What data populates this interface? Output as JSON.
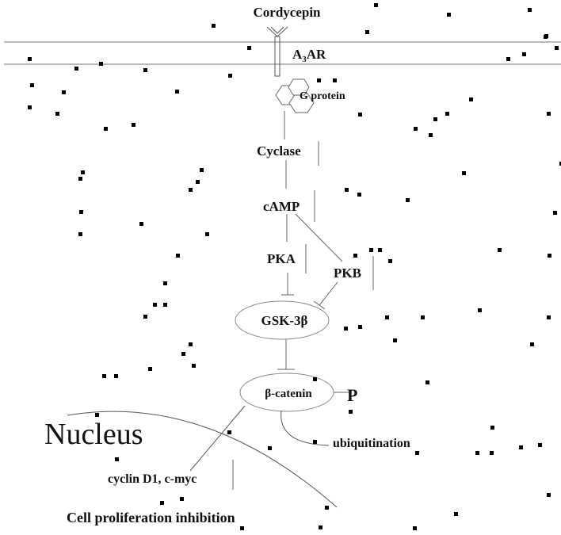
{
  "diagram": {
    "labels": {
      "cordycepin": "Cordycepin",
      "receptor_main": "A",
      "receptor_sub": "3",
      "receptor_tail": "AR",
      "g_protein": "G protein",
      "cyclase": "Cyclase",
      "camp": "cAMP",
      "pka": "PKA",
      "pkb": "PKB",
      "gsk3b": "GSK-3β",
      "beta_catenin": "β-catenin",
      "phosphate": "P",
      "nucleus": "Nucleus",
      "ubiquitination": "ubiquitination",
      "targets": "cyclin D1, c-myc",
      "outcome": "Cell proliferation inhibition"
    }
  }
}
